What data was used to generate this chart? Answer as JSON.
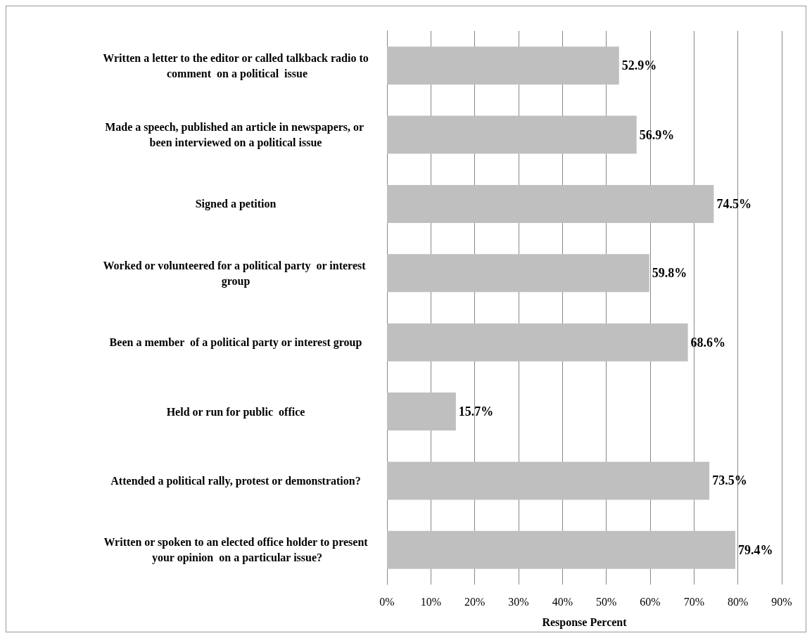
{
  "chart_data": {
    "type": "bar",
    "orientation": "horizontal",
    "xlabel": "Response Percent",
    "categories": [
      "Written a letter to the editor or called talkback radio to comment  on a political  issue",
      "Made a speech, published an article in newspapers, or been interviewed on a political issue",
      "Signed a petition",
      "Worked or volunteered for a political party  or interest group",
      "Been a member  of a political party or interest group",
      "Held or run for public  office",
      "Attended a political rally, protest or demonstration?",
      "Written or spoken to an elected office holder to present your opinion  on a particular issue?"
    ],
    "values": [
      52.9,
      56.9,
      74.5,
      59.8,
      68.6,
      15.7,
      73.5,
      79.4
    ],
    "value_labels": [
      "52.9%",
      "56.9%",
      "74.5%",
      "59.8%",
      "68.6%",
      "15.7%",
      "73.5%",
      "79.4%"
    ],
    "color": "#bfbfbf",
    "xlim": [
      0,
      90
    ],
    "xticks": [
      {
        "value": 0,
        "label": "0%"
      },
      {
        "value": 10,
        "label": "10%"
      },
      {
        "value": 20,
        "label": "20%"
      },
      {
        "value": 30,
        "label": "30%"
      },
      {
        "value": 40,
        "label": "40%"
      },
      {
        "value": 50,
        "label": "50%"
      },
      {
        "value": 60,
        "label": "60%"
      },
      {
        "value": 70,
        "label": "70%"
      },
      {
        "value": 80,
        "label": "80%"
      },
      {
        "value": 90,
        "label": "90%"
      }
    ],
    "grid": "x"
  }
}
